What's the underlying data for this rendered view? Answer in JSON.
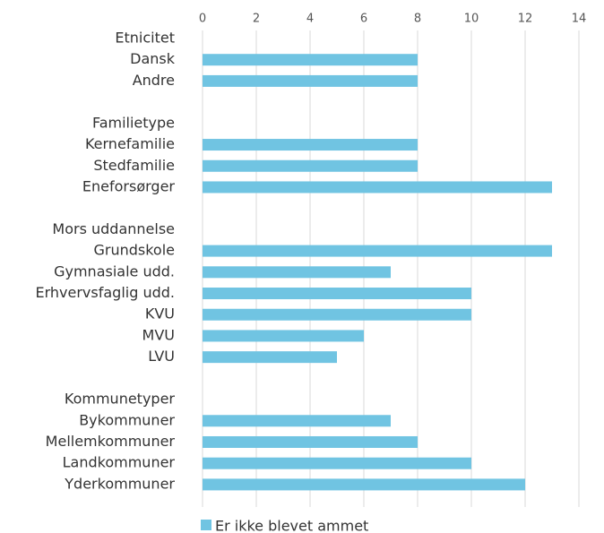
{
  "chart_data": {
    "type": "bar",
    "orientation": "horizontal",
    "categories": [
      "Etnicitet",
      "Dansk",
      "Andre",
      null,
      "Familietype",
      "Kernefamilie",
      "Stedfamilie",
      "Eneforsørger",
      null,
      "Mors uddannelse",
      "Grundskole",
      "Gymnasiale udd.",
      "Erhvervsfaglig udd.",
      "KVU",
      "MVU",
      "LVU",
      null,
      "Kommunetyper",
      "Bykommuner",
      "Mellemkommuner",
      "Landkommuner",
      "Yderkommuner"
    ],
    "series": [
      {
        "name": "Er ikke blevet ammet",
        "color": "#70c4e2",
        "values": [
          null,
          8,
          8,
          null,
          null,
          8,
          8,
          13,
          null,
          null,
          13,
          7,
          10,
          10,
          6,
          5,
          null,
          null,
          7,
          8,
          10,
          12
        ]
      }
    ],
    "xlim": [
      0,
      14
    ],
    "xticks": [
      0,
      2,
      4,
      6,
      8,
      10,
      12,
      14
    ],
    "grid": true,
    "legend": "bottom"
  }
}
